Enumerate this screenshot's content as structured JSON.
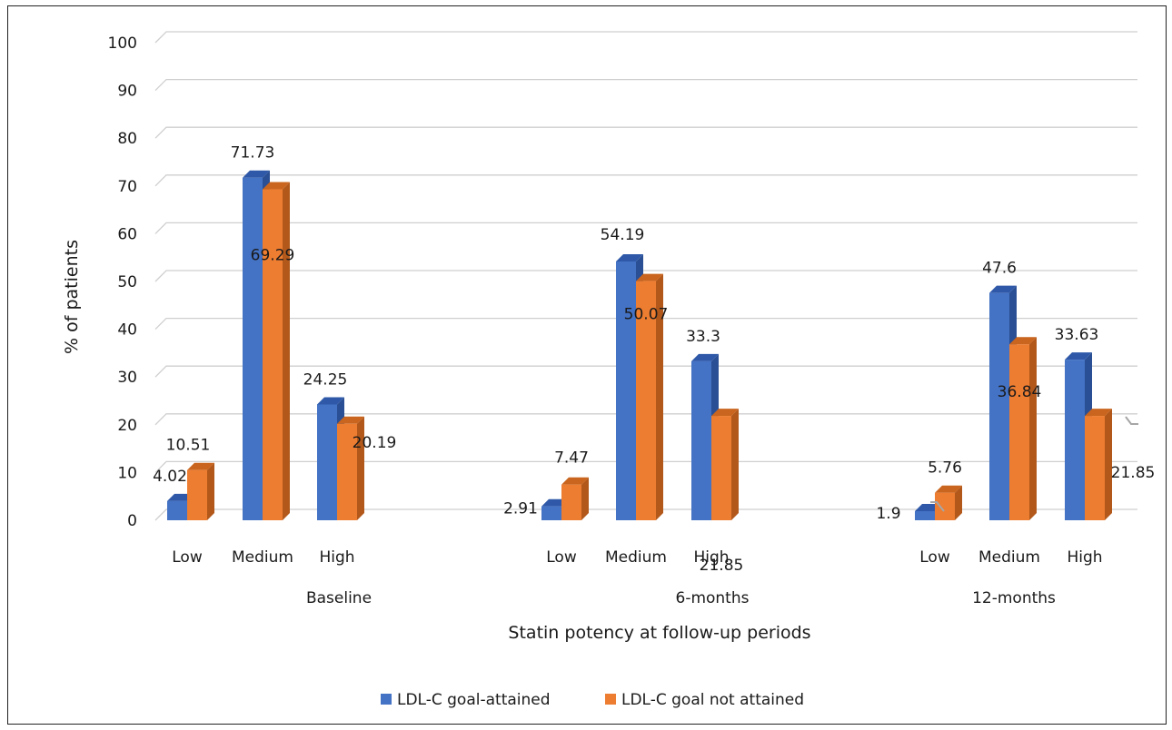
{
  "chart_data": {
    "type": "bar",
    "title": "",
    "xlabel": "Statin potency at follow-up periods",
    "ylabel": "% of patients",
    "ylim": [
      0,
      100
    ],
    "yticks": [
      "0",
      "10",
      "20",
      "30",
      "40",
      "50",
      "60",
      "70",
      "80",
      "90",
      "100"
    ],
    "grid": true,
    "legend_position": "bottom",
    "groups": [
      {
        "label": "Baseline",
        "categories": [
          "Low",
          "Medium",
          "High"
        ]
      },
      {
        "label": "6-months",
        "categories": [
          "Low",
          "Medium",
          "High"
        ]
      },
      {
        "label": "12-months",
        "categories": [
          "Low",
          "Medium",
          "High"
        ]
      }
    ],
    "series": [
      {
        "name": "LDL-C goal-attained",
        "color": "#4472C4",
        "values": [
          4.02,
          71.73,
          24.25,
          2.91,
          54.19,
          33.3,
          1.9,
          47.6,
          33.63
        ],
        "labels": [
          "4.02",
          "71.73",
          "24.25",
          "2.91",
          "54.19",
          "33.3",
          "1.9",
          "47.6",
          "33.63"
        ]
      },
      {
        "name": "LDL-C goal not attained",
        "color": "#ED7D31",
        "values": [
          10.51,
          69.29,
          20.19,
          7.47,
          50.07,
          21.85,
          5.76,
          36.84,
          21.85
        ],
        "labels": [
          "10.51",
          "69.29",
          "20.19",
          "7.47",
          "50.07",
          "21.85",
          "5.76",
          "36.84",
          "21.85"
        ]
      }
    ]
  }
}
